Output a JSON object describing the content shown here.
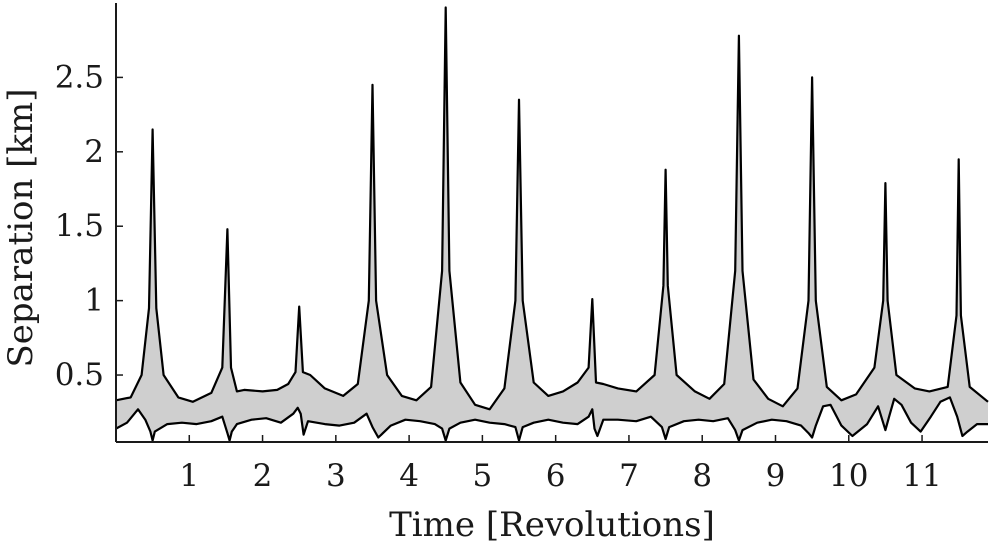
{
  "chart_data": {
    "type": "area",
    "title": "",
    "xlabel": "Time [Revolutions]",
    "ylabel": "Separation [km]",
    "xlim": [
      0,
      11.9
    ],
    "ylim": [
      0.05,
      3.0
    ],
    "x_ticks": [
      1,
      2,
      3,
      4,
      5,
      6,
      7,
      8,
      9,
      10,
      11
    ],
    "x_tick_labels": [
      "1",
      "2",
      "3",
      "4",
      "5",
      "6",
      "7",
      "8",
      "9",
      "10",
      "11"
    ],
    "y_ticks": [
      0.5,
      1,
      1.5,
      2,
      2.5
    ],
    "y_tick_labels": [
      "0.5",
      "1",
      "1.5",
      "2",
      "2.5"
    ],
    "grid": false,
    "legend": "none",
    "fill_color": "#cfcfcf",
    "line_color": "#000000",
    "series": [
      {
        "role": "upper-bound",
        "x": [
          0,
          0.2,
          0.35,
          0.45,
          0.5,
          0.55,
          0.65,
          0.85,
          1.05,
          1.3,
          1.45,
          1.52,
          1.57,
          1.65,
          1.75,
          2.0,
          2.2,
          2.35,
          2.45,
          2.5,
          2.55,
          2.65,
          2.85,
          3.1,
          3.3,
          3.45,
          3.5,
          3.55,
          3.7,
          3.9,
          4.1,
          4.3,
          4.45,
          4.5,
          4.55,
          4.7,
          4.9,
          5.1,
          5.3,
          5.45,
          5.5,
          5.55,
          5.7,
          5.9,
          6.1,
          6.3,
          6.45,
          6.5,
          6.55,
          6.65,
          6.85,
          7.1,
          7.35,
          7.47,
          7.5,
          7.53,
          7.65,
          7.9,
          8.1,
          8.3,
          8.45,
          8.5,
          8.55,
          8.7,
          8.9,
          9.1,
          9.3,
          9.45,
          9.5,
          9.55,
          9.7,
          9.9,
          10.1,
          10.35,
          10.47,
          10.5,
          10.53,
          10.65,
          10.9,
          11.1,
          11.35,
          11.47,
          11.5,
          11.53,
          11.65,
          11.9
        ],
        "y": [
          0.33,
          0.35,
          0.5,
          0.95,
          2.15,
          0.95,
          0.5,
          0.35,
          0.32,
          0.38,
          0.55,
          1.48,
          0.55,
          0.39,
          0.4,
          0.39,
          0.4,
          0.44,
          0.52,
          0.96,
          0.52,
          0.5,
          0.41,
          0.36,
          0.44,
          1.0,
          2.45,
          1.0,
          0.5,
          0.36,
          0.33,
          0.42,
          1.2,
          2.97,
          1.2,
          0.45,
          0.3,
          0.27,
          0.41,
          1.0,
          2.35,
          1.0,
          0.45,
          0.36,
          0.39,
          0.45,
          0.55,
          1.01,
          0.45,
          0.44,
          0.41,
          0.39,
          0.5,
          1.1,
          1.88,
          1.1,
          0.5,
          0.39,
          0.34,
          0.44,
          1.2,
          2.78,
          1.2,
          0.47,
          0.34,
          0.29,
          0.41,
          1.0,
          2.5,
          1.0,
          0.42,
          0.33,
          0.37,
          0.55,
          1.0,
          1.79,
          1.0,
          0.5,
          0.41,
          0.39,
          0.42,
          0.9,
          1.95,
          0.9,
          0.42,
          0.32
        ]
      },
      {
        "role": "lower-bound",
        "x": [
          0,
          0.15,
          0.3,
          0.4,
          0.47,
          0.5,
          0.53,
          0.7,
          0.9,
          1.1,
          1.3,
          1.45,
          1.52,
          1.55,
          1.58,
          1.65,
          1.85,
          2.05,
          2.25,
          2.42,
          2.48,
          2.52,
          2.56,
          2.62,
          2.85,
          3.05,
          3.25,
          3.42,
          3.5,
          3.58,
          3.75,
          3.95,
          4.15,
          4.35,
          4.45,
          4.5,
          4.55,
          4.7,
          4.9,
          5.1,
          5.3,
          5.45,
          5.5,
          5.55,
          5.7,
          5.9,
          6.1,
          6.3,
          6.45,
          6.5,
          6.53,
          6.57,
          6.65,
          6.85,
          7.1,
          7.3,
          7.45,
          7.5,
          7.55,
          7.75,
          7.95,
          8.15,
          8.35,
          8.45,
          8.5,
          8.55,
          8.75,
          8.95,
          9.15,
          9.35,
          9.45,
          9.5,
          9.55,
          9.65,
          9.75,
          9.9,
          10.05,
          10.25,
          10.4,
          10.5,
          10.55,
          10.62,
          10.72,
          10.85,
          10.98,
          11.12,
          11.25,
          11.38,
          11.48,
          11.55,
          11.62,
          11.75,
          11.9
        ],
        "y": [
          0.14,
          0.18,
          0.27,
          0.2,
          0.12,
          0.06,
          0.12,
          0.17,
          0.18,
          0.17,
          0.19,
          0.22,
          0.11,
          0.06,
          0.12,
          0.17,
          0.2,
          0.21,
          0.18,
          0.24,
          0.28,
          0.24,
          0.1,
          0.19,
          0.17,
          0.16,
          0.18,
          0.24,
          0.15,
          0.08,
          0.16,
          0.2,
          0.19,
          0.17,
          0.14,
          0.06,
          0.14,
          0.18,
          0.2,
          0.18,
          0.17,
          0.15,
          0.06,
          0.15,
          0.18,
          0.2,
          0.18,
          0.17,
          0.22,
          0.27,
          0.14,
          0.09,
          0.2,
          0.2,
          0.19,
          0.22,
          0.15,
          0.07,
          0.15,
          0.19,
          0.2,
          0.19,
          0.21,
          0.13,
          0.06,
          0.13,
          0.18,
          0.2,
          0.19,
          0.16,
          0.11,
          0.08,
          0.16,
          0.29,
          0.3,
          0.16,
          0.09,
          0.17,
          0.29,
          0.13,
          0.22,
          0.34,
          0.3,
          0.18,
          0.12,
          0.22,
          0.32,
          0.35,
          0.22,
          0.09,
          0.12,
          0.17,
          0.17
        ]
      }
    ]
  }
}
